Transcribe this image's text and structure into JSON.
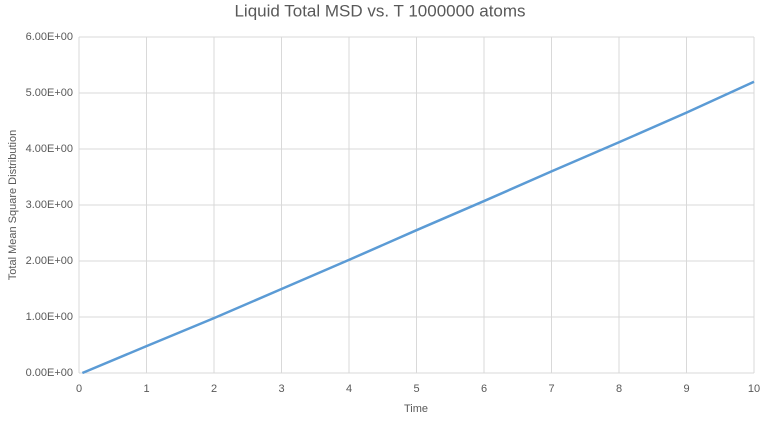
{
  "chart_data": {
    "type": "line",
    "title": "Liquid Total MSD vs. T 1000000 atoms",
    "x_label": "Time",
    "y_label": "Total Mean Square Distribution",
    "x": [
      0.05,
      1,
      2,
      3,
      4,
      5,
      6,
      7,
      8,
      9,
      10
    ],
    "values": [
      0.0,
      0.48,
      0.98,
      1.5,
      2.02,
      2.55,
      3.07,
      3.6,
      4.12,
      4.65,
      5.2
    ],
    "color": "#5b9bd5",
    "xlim": [
      0,
      10
    ],
    "xticks": [
      0,
      1,
      2,
      3,
      4,
      5,
      6,
      7,
      8,
      9,
      10
    ],
    "ylim": [
      0,
      6
    ],
    "yticks": [
      {
        "value": 0,
        "label": "0.00E+00"
      },
      {
        "value": 1,
        "label": "1.00E+00"
      },
      {
        "value": 2,
        "label": "2.00E+00"
      },
      {
        "value": 3,
        "label": "3.00E+00"
      },
      {
        "value": 4,
        "label": "4.00E+00"
      },
      {
        "value": 5,
        "label": "5.00E+00"
      },
      {
        "value": 6,
        "label": "6.00E+00"
      }
    ],
    "grid": true
  }
}
